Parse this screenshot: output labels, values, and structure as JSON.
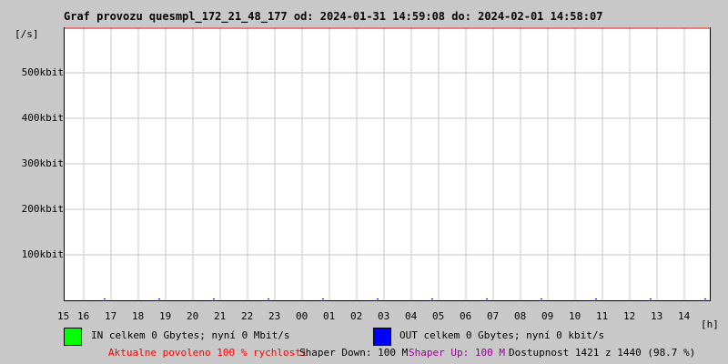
{
  "title": "Graf provozu quesmpl_172_21_48_177 od: 2024-01-31 14:59:08 do: 2024-02-01 14:58:07",
  "chart_data": {
    "type": "line",
    "title": "Graf provozu quesmpl_172_21_48_177 od: 2024-01-31 14:59:08 do: 2024-02-01 14:58:07",
    "ylabel": "[/s]",
    "xlabel": "[h]",
    "y_ticks": [
      "100kbit",
      "200kbit",
      "300kbit",
      "400kbit",
      "500kbit"
    ],
    "y_tick_values": [
      100,
      200,
      300,
      400,
      500
    ],
    "ylim": [
      0,
      600
    ],
    "y_unit": "kbit",
    "x_ticks": [
      "15",
      "16",
      "17",
      "18",
      "19",
      "20",
      "21",
      "22",
      "23",
      "00",
      "01",
      "02",
      "03",
      "04",
      "05",
      "06",
      "07",
      "08",
      "09",
      "10",
      "11",
      "12",
      "13",
      "14"
    ],
    "grid": true,
    "series": [
      {
        "name": "IN",
        "color": "#00ff00",
        "values": [
          0
        ]
      },
      {
        "name": "OUT",
        "color": "#0000ff",
        "values": [
          0
        ]
      }
    ]
  },
  "legend": {
    "in_text": "IN celkem 0 Gbytes; nyní 0 Mbit/s",
    "in_color": "#00ff00",
    "out_text": "OUT celkem 0 Gbytes; nyní 0 kbit/s",
    "out_color": "#0000ff"
  },
  "status": {
    "allowed": "Aktualne povoleno 100 % rychlosti",
    "shaper_down": "Shaper Down: 100 M",
    "shaper_up": "Shaper Up: 100 M",
    "availability": "Dostupnost 1421 z 1440 (98.7 %)"
  }
}
